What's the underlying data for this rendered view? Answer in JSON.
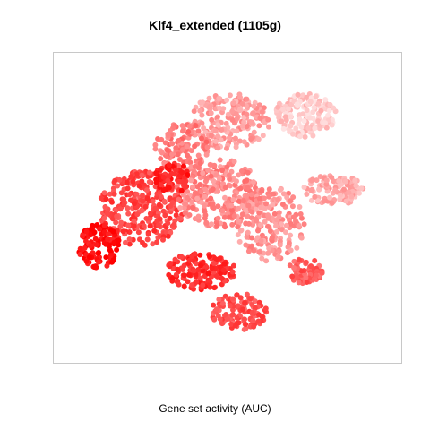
{
  "chart_data": {
    "type": "scatter",
    "title": "Klf4_extended (1105g)",
    "xlabel": "Gene set activity (AUC)",
    "ylabel": "",
    "grid": false,
    "legend": "none",
    "color_scale": {
      "low": "#ffe3e3",
      "high": "#ff0000"
    },
    "clusters": [
      {
        "cx": 0.5,
        "cy": 0.22,
        "rx": 0.12,
        "ry": 0.09,
        "n": 220,
        "a": 0.3
      },
      {
        "cx": 0.72,
        "cy": 0.2,
        "rx": 0.09,
        "ry": 0.07,
        "n": 160,
        "a": 0.12
      },
      {
        "cx": 0.37,
        "cy": 0.3,
        "rx": 0.08,
        "ry": 0.08,
        "n": 120,
        "a": 0.45
      },
      {
        "cx": 0.25,
        "cy": 0.5,
        "rx": 0.12,
        "ry": 0.12,
        "n": 300,
        "a": 0.7
      },
      {
        "cx": 0.13,
        "cy": 0.62,
        "rx": 0.06,
        "ry": 0.07,
        "n": 120,
        "a": 0.95
      },
      {
        "cx": 0.47,
        "cy": 0.45,
        "rx": 0.12,
        "ry": 0.11,
        "n": 280,
        "a": 0.4
      },
      {
        "cx": 0.62,
        "cy": 0.55,
        "rx": 0.1,
        "ry": 0.12,
        "n": 200,
        "a": 0.35
      },
      {
        "cx": 0.42,
        "cy": 0.7,
        "rx": 0.1,
        "ry": 0.06,
        "n": 150,
        "a": 0.8
      },
      {
        "cx": 0.53,
        "cy": 0.83,
        "rx": 0.08,
        "ry": 0.06,
        "n": 120,
        "a": 0.65
      },
      {
        "cx": 0.8,
        "cy": 0.44,
        "rx": 0.09,
        "ry": 0.05,
        "n": 110,
        "a": 0.25
      },
      {
        "cx": 0.72,
        "cy": 0.7,
        "rx": 0.05,
        "ry": 0.04,
        "n": 70,
        "a": 0.6
      },
      {
        "cx": 0.34,
        "cy": 0.4,
        "rx": 0.05,
        "ry": 0.05,
        "n": 80,
        "a": 0.85
      }
    ]
  }
}
